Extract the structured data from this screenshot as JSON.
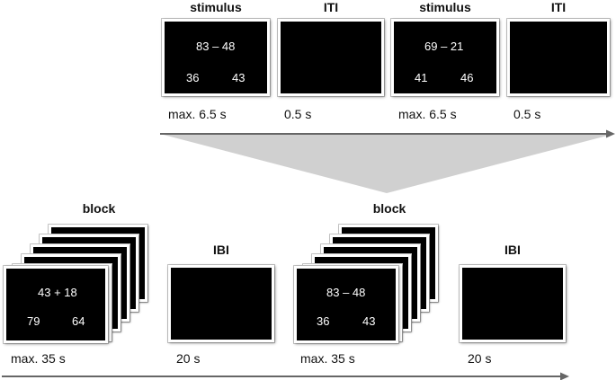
{
  "top": {
    "trials": [
      {
        "label": "stimulus",
        "problem": "83 – 48",
        "left_option": "36",
        "right_option": "43",
        "duration": "max. 6.5 s"
      },
      {
        "label": "ITI",
        "duration": "0.5 s"
      },
      {
        "label": "stimulus",
        "problem": "69 – 21",
        "left_option": "41",
        "right_option": "46",
        "duration": "max. 6.5 s"
      },
      {
        "label": "ITI",
        "duration": "0.5 s"
      }
    ]
  },
  "bottom": {
    "items": [
      {
        "label": "block",
        "problem": "43 + 18",
        "left_option": "79",
        "right_option": "64",
        "duration": "max. 35 s"
      },
      {
        "label": "IBI",
        "duration": "20 s"
      },
      {
        "label": "block",
        "problem": "83 – 48",
        "left_option": "36",
        "right_option": "43",
        "duration": "max. 35 s"
      },
      {
        "label": "IBI",
        "duration": "20 s"
      }
    ]
  },
  "colors": {
    "screen": "#000000",
    "frame": "#ffffff",
    "arrow": "#666666",
    "zoom_wedge": "#d0d0d0"
  }
}
